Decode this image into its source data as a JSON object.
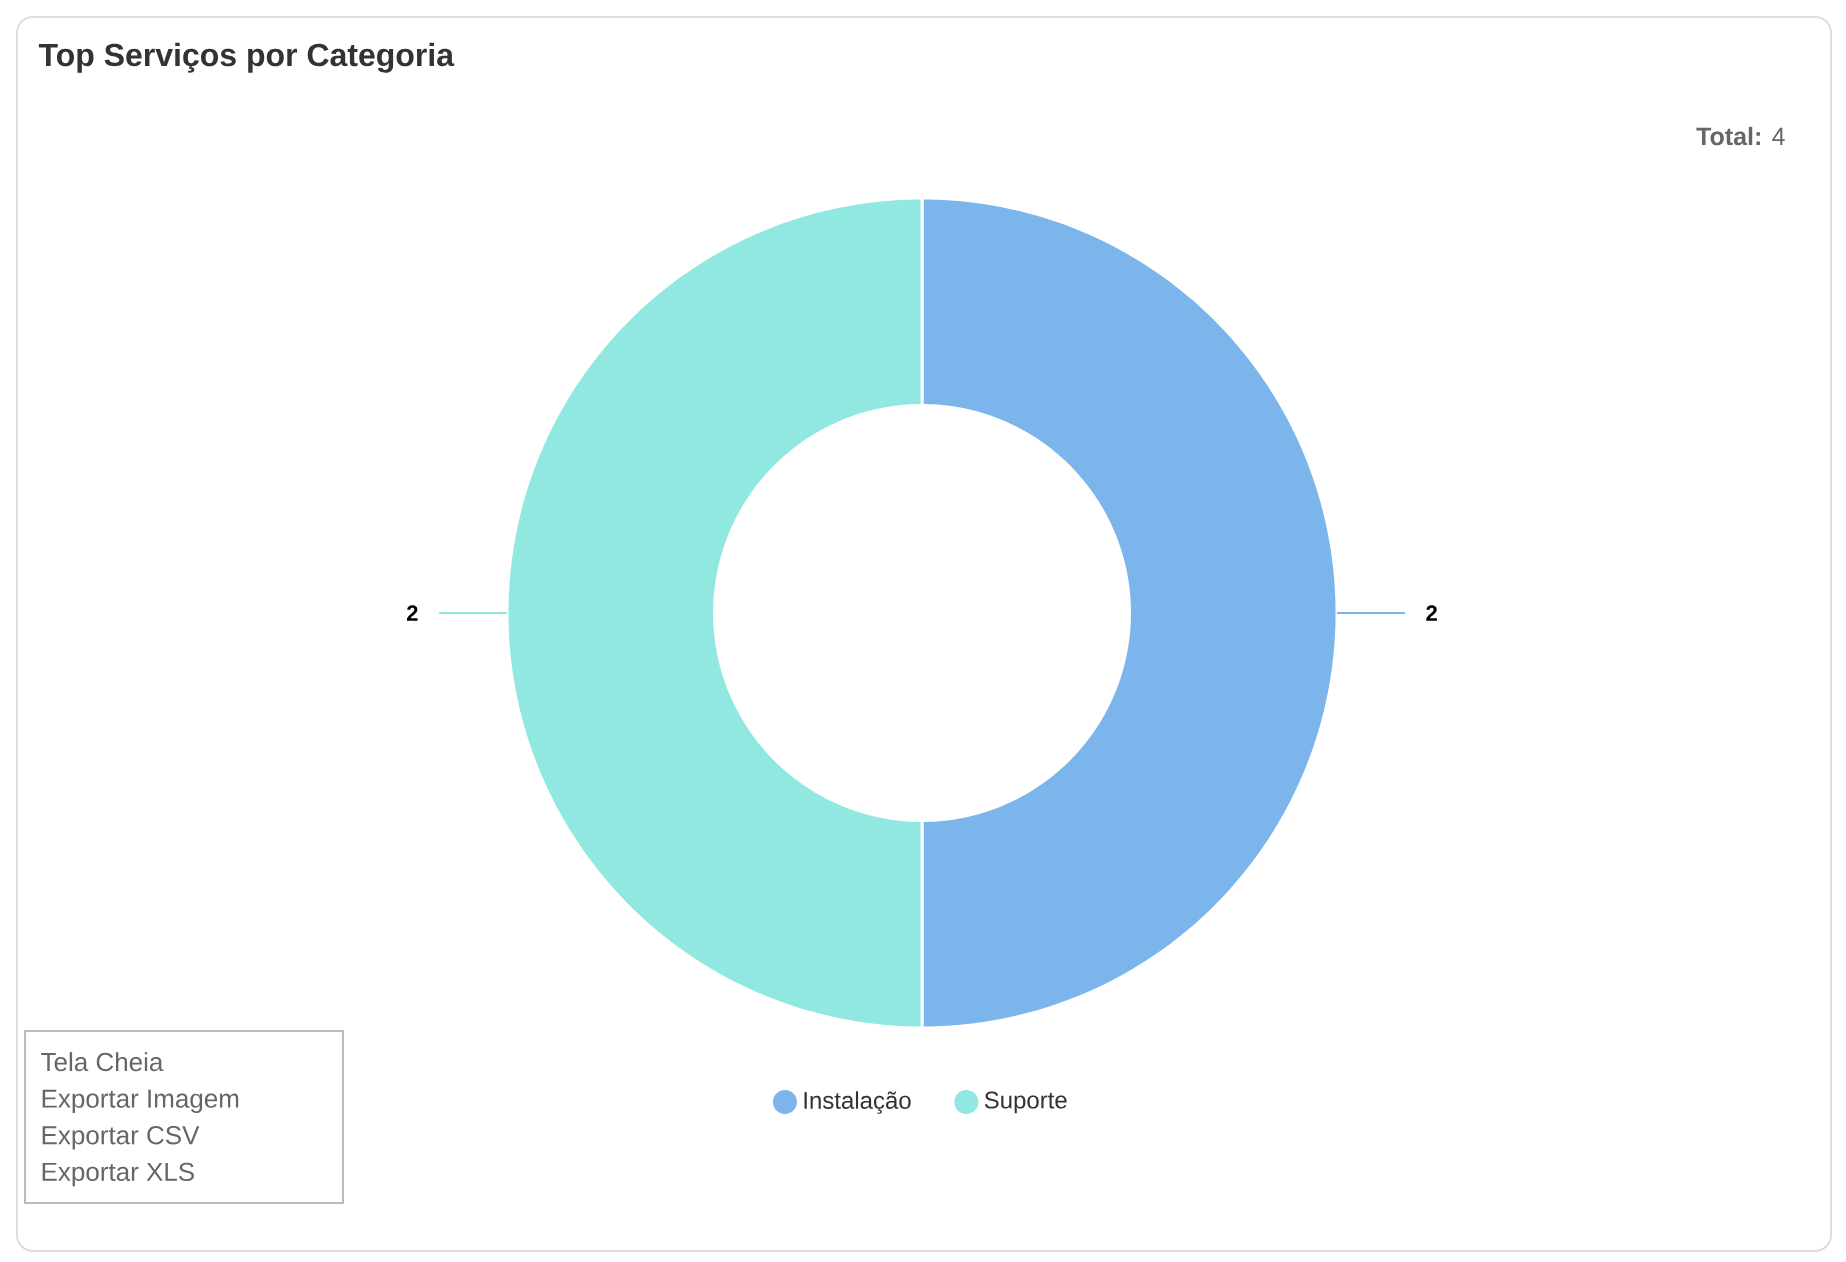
{
  "chart_data": {
    "type": "donut",
    "title": "Top Serviços por Categoria",
    "categories": [
      "Instalação",
      "Suporte"
    ],
    "values": [
      2,
      2
    ],
    "colors": [
      "#7cb5ec",
      "#91e8e1"
    ],
    "data_labels": true,
    "legend": "bottom",
    "annotations": [
      "**Total:** 4",
      "Tela Cheia",
      "Exportar Imagem",
      "Exportar CSV",
      "Exportar XLS"
    ]
  }
}
